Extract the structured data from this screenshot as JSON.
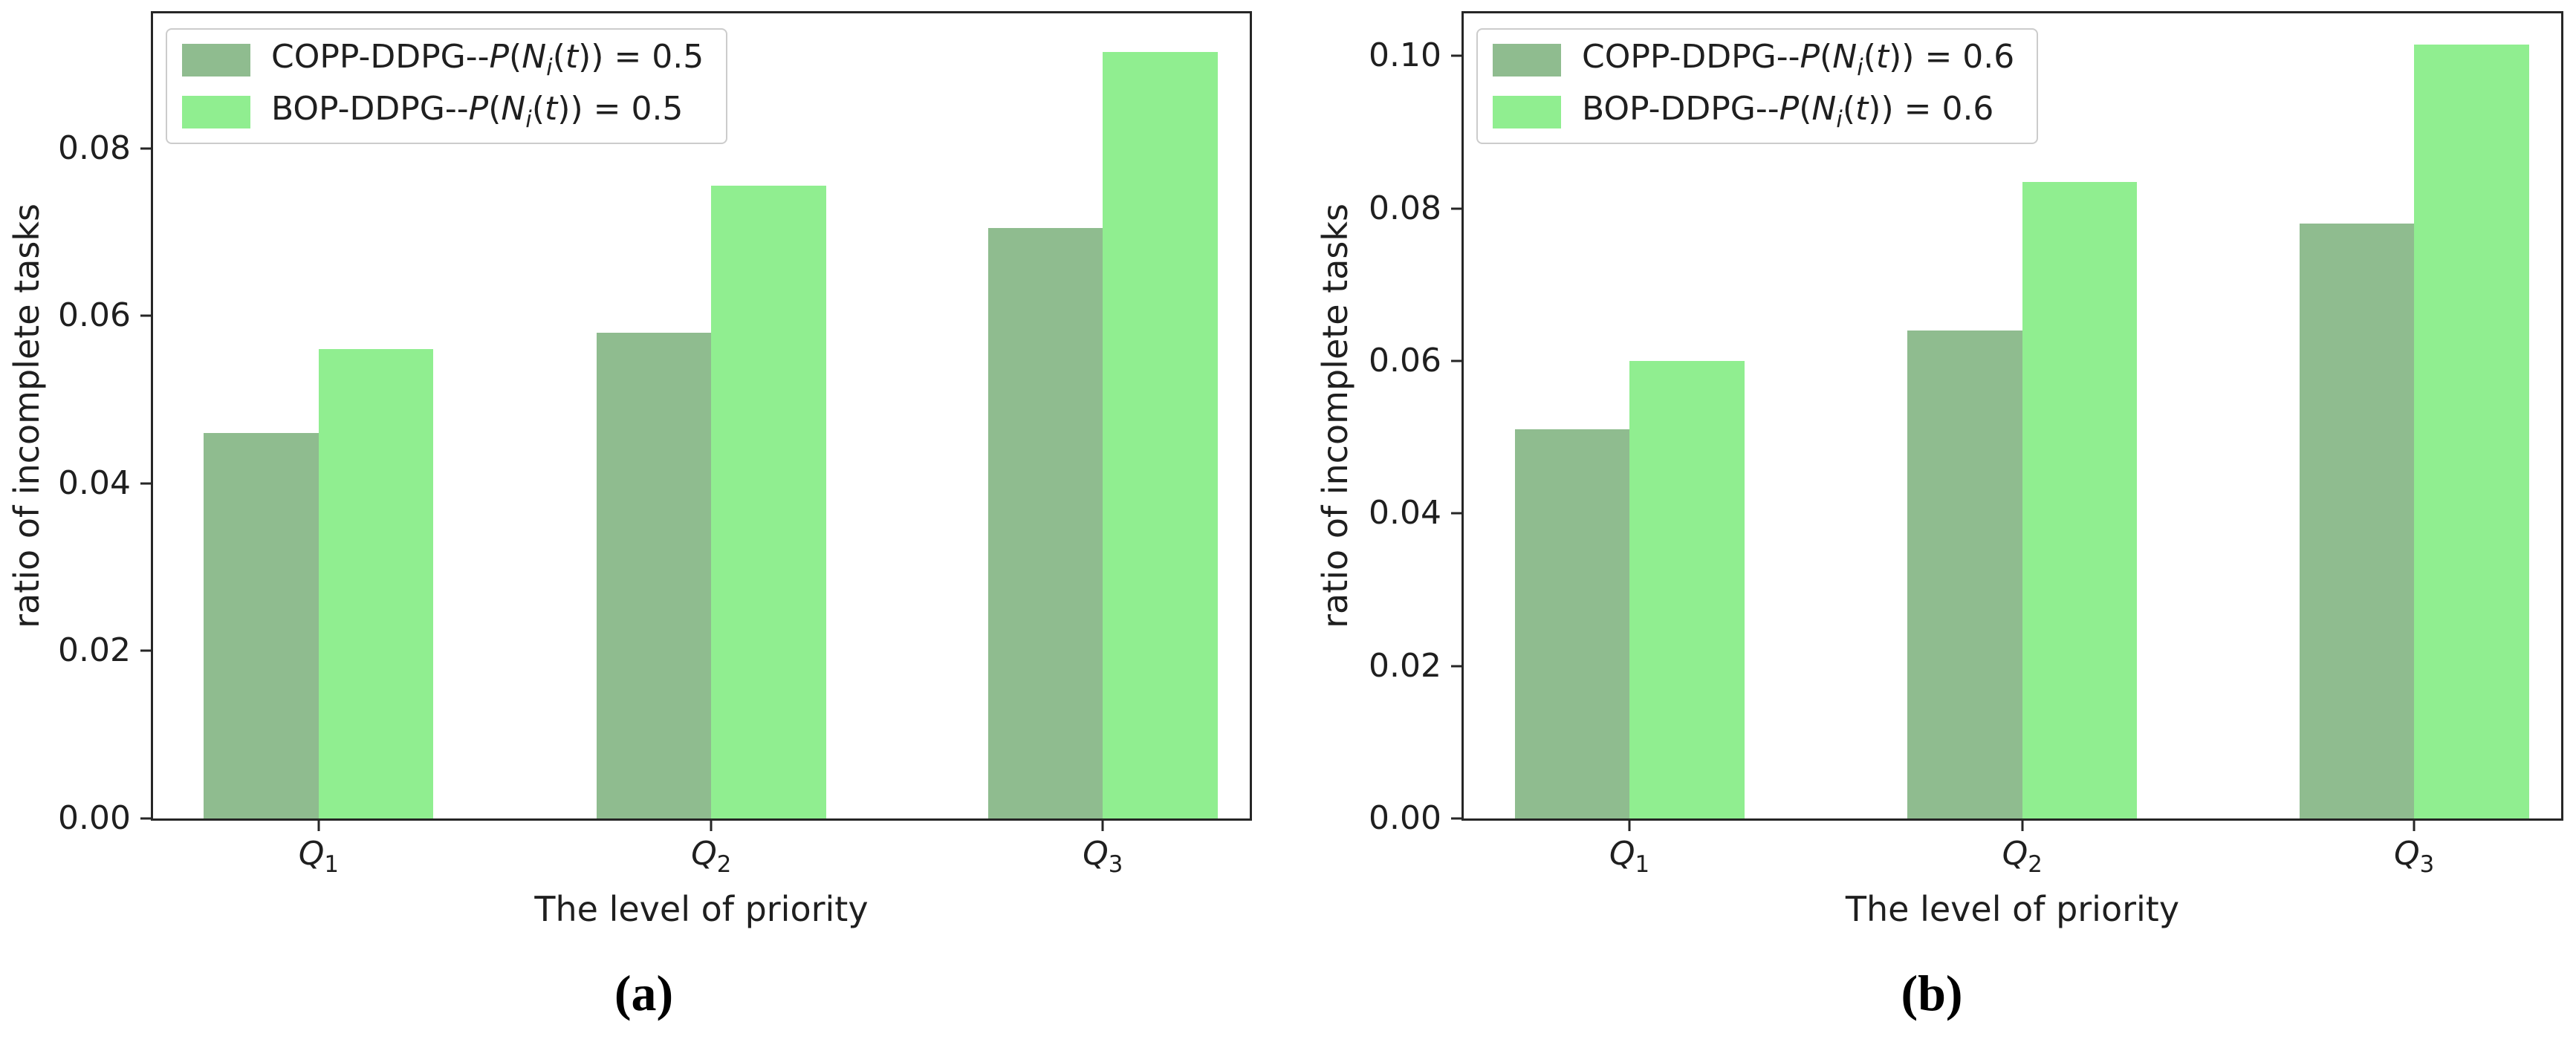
{
  "colors": {
    "copp_series": "#8fbc8f",
    "bop_series": "#90ee90",
    "spine": "#262626",
    "text": "#1f1f1f",
    "legend_border": "#cccccc"
  },
  "chart_data": [
    {
      "id": "a",
      "type": "bar",
      "title": "",
      "caption": "(a)",
      "xlabel": "The level of priority",
      "ylabel": "ratio of incomplete tasks",
      "categories": [
        "Q1",
        "Q2",
        "Q3"
      ],
      "categories_html": [
        "<i>Q</i><sub>1</sub>",
        "<i>Q</i><sub>2</sub>",
        "<i>Q</i><sub>3</sub>"
      ],
      "series": [
        {
          "name": "COPP-DDPG--P(N_i(t)) = 0.5",
          "name_html": "COPP-DDPG--<i>P</i>(<i>N</i><sub><i>i</i></sub>(<i>t</i>)) = 0.5",
          "color": "#8fbc8f",
          "values": [
            0.046,
            0.058,
            0.0705
          ]
        },
        {
          "name": "BOP-DDPG--P(N_i(t)) = 0.5",
          "name_html": "BOP-DDPG--<i>P</i>(<i>N</i><sub><i>i</i></sub>(<i>t</i>)) = 0.5",
          "color": "#90ee90",
          "values": [
            0.056,
            0.0755,
            0.0915
          ]
        }
      ],
      "yticks": [
        0.0,
        0.02,
        0.04,
        0.06,
        0.08
      ],
      "ytick_labels": [
        "0.00",
        "0.02",
        "0.04",
        "0.06",
        "0.08"
      ],
      "ylim": [
        0,
        0.0961
      ],
      "grid": false,
      "legend_position": "upper left"
    },
    {
      "id": "b",
      "type": "bar",
      "title": "",
      "caption": "(b)",
      "xlabel": "The level of priority",
      "ylabel": "ratio of incomplete tasks",
      "categories": [
        "Q1",
        "Q2",
        "Q3"
      ],
      "categories_html": [
        "<i>Q</i><sub>1</sub>",
        "<i>Q</i><sub>2</sub>",
        "<i>Q</i><sub>3</sub>"
      ],
      "series": [
        {
          "name": "COPP-DDPG--P(N_i(t)) = 0.6",
          "name_html": "COPP-DDPG--<i>P</i>(<i>N</i><sub><i>i</i></sub>(<i>t</i>)) = 0.6",
          "color": "#8fbc8f",
          "values": [
            0.051,
            0.064,
            0.078
          ]
        },
        {
          "name": "BOP-DDPG--P(N_i(t)) = 0.6",
          "name_html": "BOP-DDPG--<i>P</i>(<i>N</i><sub><i>i</i></sub>(<i>t</i>)) = 0.6",
          "color": "#90ee90",
          "values": [
            0.06,
            0.0835,
            0.1015
          ]
        }
      ],
      "yticks": [
        0.0,
        0.02,
        0.04,
        0.06,
        0.08,
        0.1
      ],
      "ytick_labels": [
        "0.00",
        "0.02",
        "0.04",
        "0.06",
        "0.08",
        "0.10"
      ],
      "ylim": [
        0,
        0.1056
      ],
      "grid": false,
      "legend_position": "upper left"
    }
  ]
}
